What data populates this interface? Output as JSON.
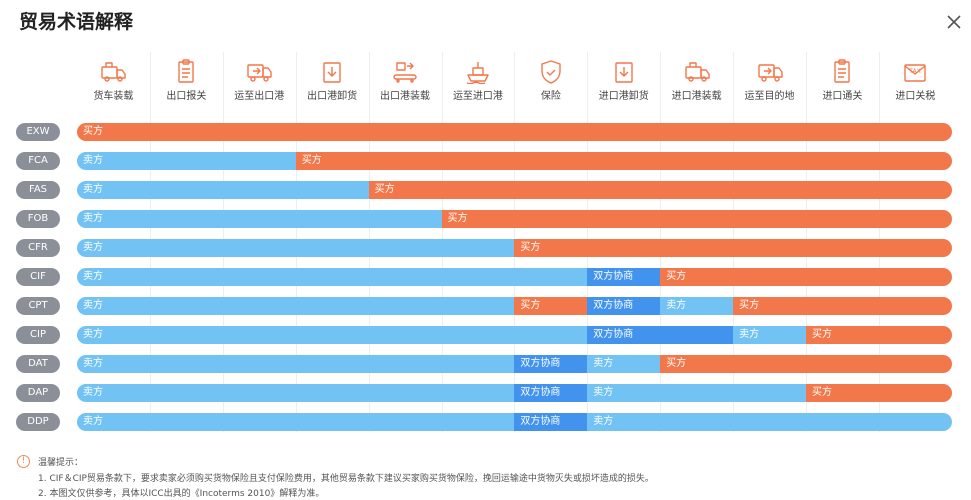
{
  "title": "贸易术语解释",
  "close_icon": "close-icon",
  "colors": {
    "buyer": "#f2774a",
    "seller": "#72c2f3",
    "negotiate": "#4293ee",
    "label_bg": "#8a8f98"
  },
  "stages": [
    {
      "label": "货车装载",
      "icon": "truck-loading-icon"
    },
    {
      "label": "出口报关",
      "icon": "clipboard-icon"
    },
    {
      "label": "运至出口港",
      "icon": "truck-icon"
    },
    {
      "label": "出口港卸货",
      "icon": "unload-icon"
    },
    {
      "label": "出口港装载",
      "icon": "conveyor-icon"
    },
    {
      "label": "运至进口港",
      "icon": "ship-icon"
    },
    {
      "label": "保险",
      "icon": "shield-icon"
    },
    {
      "label": "进口港卸货",
      "icon": "unload-icon"
    },
    {
      "label": "进口港装载",
      "icon": "truck-loading-icon"
    },
    {
      "label": "运至目的地",
      "icon": "truck-icon"
    },
    {
      "label": "进口通关",
      "icon": "clipboard-icon"
    },
    {
      "label": "进口关税",
      "icon": "tax-icon"
    }
  ],
  "terms": [
    {
      "code": "EXW",
      "segments": [
        {
          "party": "buyer",
          "text": "买方",
          "from": 0,
          "to": 12
        }
      ]
    },
    {
      "code": "FCA",
      "segments": [
        {
          "party": "seller",
          "text": "卖方",
          "from": 0,
          "to": 3
        },
        {
          "party": "buyer",
          "text": "买方",
          "from": 3,
          "to": 12
        }
      ]
    },
    {
      "code": "FAS",
      "segments": [
        {
          "party": "seller",
          "text": "卖方",
          "from": 0,
          "to": 4
        },
        {
          "party": "buyer",
          "text": "买方",
          "from": 4,
          "to": 12
        }
      ]
    },
    {
      "code": "FOB",
      "segments": [
        {
          "party": "seller",
          "text": "卖方",
          "from": 0,
          "to": 5
        },
        {
          "party": "buyer",
          "text": "买方",
          "from": 5,
          "to": 12
        }
      ]
    },
    {
      "code": "CFR",
      "segments": [
        {
          "party": "seller",
          "text": "卖方",
          "from": 0,
          "to": 6
        },
        {
          "party": "buyer",
          "text": "买方",
          "from": 6,
          "to": 12
        }
      ]
    },
    {
      "code": "CIF",
      "segments": [
        {
          "party": "seller",
          "text": "卖方",
          "from": 0,
          "to": 7
        },
        {
          "party": "negotiate",
          "text": "双方协商",
          "from": 7,
          "to": 8
        },
        {
          "party": "buyer",
          "text": "买方",
          "from": 8,
          "to": 12
        }
      ]
    },
    {
      "code": "CPT",
      "segments": [
        {
          "party": "seller",
          "text": "卖方",
          "from": 0,
          "to": 6
        },
        {
          "party": "buyer",
          "text": "买方",
          "from": 6,
          "to": 7
        },
        {
          "party": "negotiate",
          "text": "双方协商",
          "from": 7,
          "to": 8
        },
        {
          "party": "seller",
          "text": "卖方",
          "from": 8,
          "to": 9
        },
        {
          "party": "buyer",
          "text": "买方",
          "from": 9,
          "to": 12
        }
      ]
    },
    {
      "code": "CIP",
      "segments": [
        {
          "party": "seller",
          "text": "卖方",
          "from": 0,
          "to": 7
        },
        {
          "party": "negotiate",
          "text": "双方协商",
          "from": 7,
          "to": 9
        },
        {
          "party": "seller",
          "text": "卖方",
          "from": 9,
          "to": 10
        },
        {
          "party": "buyer",
          "text": "买方",
          "from": 10,
          "to": 12
        }
      ]
    },
    {
      "code": "DAT",
      "segments": [
        {
          "party": "seller",
          "text": "卖方",
          "from": 0,
          "to": 6
        },
        {
          "party": "negotiate",
          "text": "双方协商",
          "from": 6,
          "to": 7
        },
        {
          "party": "seller",
          "text": "卖方",
          "from": 7,
          "to": 8
        },
        {
          "party": "buyer",
          "text": "买方",
          "from": 8,
          "to": 12
        }
      ]
    },
    {
      "code": "DAP",
      "segments": [
        {
          "party": "seller",
          "text": "卖方",
          "from": 0,
          "to": 6
        },
        {
          "party": "negotiate",
          "text": "双方协商",
          "from": 6,
          "to": 7
        },
        {
          "party": "seller",
          "text": "卖方",
          "from": 7,
          "to": 10
        },
        {
          "party": "buyer",
          "text": "买方",
          "from": 10,
          "to": 12
        }
      ]
    },
    {
      "code": "DDP",
      "segments": [
        {
          "party": "seller",
          "text": "卖方",
          "from": 0,
          "to": 6
        },
        {
          "party": "negotiate",
          "text": "双方协商",
          "from": 6,
          "to": 7
        },
        {
          "party": "seller",
          "text": "卖方",
          "from": 7,
          "to": 12
        }
      ]
    }
  ],
  "tips": {
    "icon_glyph": "!",
    "heading": "温馨提示：",
    "lines": [
      "1. CIF＆CIP贸易条款下，要求卖家必须购买货物保险且支付保险费用，其他贸易条款下建议买家购买货物保险，挽回运输途中货物灭失或损坏造成的损失。",
      "2. 本图文仅供参考，具体以ICC出具的《Incoterms 2010》解释为准。"
    ]
  }
}
